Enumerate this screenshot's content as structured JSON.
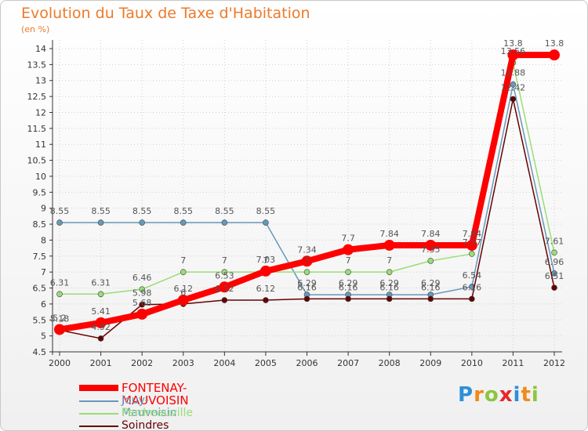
{
  "colors": {
    "title": "#ec7a2a",
    "grid": "#d0d0d0",
    "axis": "#333333",
    "label": "#555555"
  },
  "legend": [
    {
      "name": "FONTENAY-MAUVOISIN",
      "color": "#ff0000"
    },
    {
      "name": "Jouy-Mauvoisin",
      "color": "#6699bb"
    },
    {
      "name": "Perdreauville",
      "color": "#99dd77"
    },
    {
      "name": "Soindres",
      "color": "#660000"
    }
  ],
  "logo": {
    "letters": [
      "P",
      "r",
      "o",
      "x",
      "i",
      "t",
      "i"
    ],
    "colors": [
      "#2e8fd8",
      "#f08a1a",
      "#8cc63e",
      "#e8262a",
      "#2e8fd8",
      "#f08a1a",
      "#8cc63e"
    ]
  },
  "chart_data": {
    "type": "line",
    "title": "Evolution du Taux de Taxe d'Habitation",
    "subtitle": "(en %)",
    "xlabel": "",
    "ylabel": "",
    "categories": [
      "2000",
      "2001",
      "2002",
      "2003",
      "2004",
      "2005",
      "2006",
      "2007",
      "2008",
      "2009",
      "2010",
      "2011",
      "2012"
    ],
    "ylim": [
      4.5,
      14
    ],
    "yticks": [
      "4.5",
      "5",
      "5.5",
      "6",
      "6.5",
      "7",
      "7.5",
      "8",
      "8.5",
      "9",
      "9.5",
      "10",
      "10.5",
      "11",
      "11.5",
      "12",
      "12.5",
      "13",
      "13.5",
      "14"
    ],
    "grid": true,
    "legend_position": "bottom-left",
    "series": [
      {
        "name": "Jouy-Mauvoisin",
        "color": "#6699bb",
        "values": [
          8.55,
          8.55,
          8.55,
          8.55,
          8.55,
          8.55,
          6.29,
          6.29,
          6.29,
          6.29,
          6.54,
          12.88,
          6.96
        ],
        "labels": [
          "8.55",
          "8.55",
          "8.55",
          "8.55",
          "8.55",
          "8.55",
          "6.29",
          "6.29",
          "6.29",
          "6.29",
          "6.54",
          "12.88",
          "6.96"
        ]
      },
      {
        "name": "Perdreauville",
        "color": "#99dd77",
        "values": [
          6.31,
          6.31,
          6.46,
          7,
          7,
          7,
          7,
          7,
          7,
          7.35,
          7.57,
          13.56,
          7.61
        ],
        "labels": [
          "6.31",
          "6.31",
          "6.46",
          "7",
          "7",
          "7",
          "7",
          "7",
          "7",
          "7.35",
          "7.57",
          "13.56",
          "7.61"
        ]
      },
      {
        "name": "Soindres",
        "color": "#660000",
        "values": [
          5.18,
          4.92,
          5.98,
          6,
          6.12,
          6.12,
          6.16,
          6.16,
          6.16,
          6.16,
          6.16,
          12.42,
          6.51
        ],
        "labels": [
          "5.18",
          "4.92",
          "5.98",
          "6",
          "6.12",
          "6.12",
          "6.16",
          "6.16",
          "6.16",
          "6.16",
          "6.16",
          "12.42",
          "6.51"
        ]
      },
      {
        "name": "FONTENAY-MAUVOISIN",
        "color": "#ff0000",
        "values": [
          5.2,
          5.41,
          5.68,
          6.12,
          6.53,
          7.03,
          7.34,
          7.7,
          7.84,
          7.84,
          7.84,
          13.8,
          13.8
        ],
        "labels": [
          "5.2",
          "5.41",
          "5.68",
          "6.12",
          "6.53",
          "7.03",
          "7.34",
          "7.7",
          "7.84",
          "7.84",
          "7.84",
          "13.8",
          "13.8"
        ]
      }
    ]
  }
}
